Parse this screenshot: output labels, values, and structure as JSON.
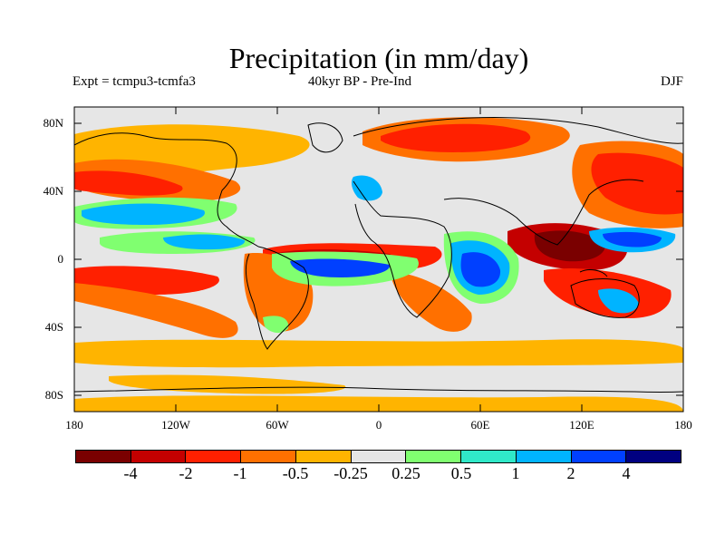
{
  "title": "Precipitation (in mm/day)",
  "experiment": "Expt = tcmpu3-tcmfa3",
  "period": "40kyr BP - Pre-Ind",
  "season": "DJF",
  "lat_labels": [
    "80N",
    "40N",
    "0",
    "40S",
    "80S"
  ],
  "lon_labels": [
    "180",
    "120W",
    "60W",
    "0",
    "60E",
    "120E",
    "180"
  ],
  "colorbar": {
    "colors": [
      "#7a0000",
      "#c40000",
      "#ff2000",
      "#ff7000",
      "#ffb400",
      "#e6e6e6",
      "#80ff70",
      "#30e8c8",
      "#00b4ff",
      "#0040ff",
      "#000080"
    ],
    "labels": [
      "-4",
      "-2",
      "-1",
      "-0.5",
      "-0.25",
      "0.25",
      "0.5",
      "1",
      "2",
      "4"
    ]
  },
  "map": {
    "background": "#e6e6e6",
    "positive_colors": [
      "#80ff70",
      "#30e8c8",
      "#00b4ff",
      "#0040ff"
    ],
    "negative_colors": [
      "#ffb400",
      "#ff7000",
      "#ff2000",
      "#c40000"
    ]
  }
}
